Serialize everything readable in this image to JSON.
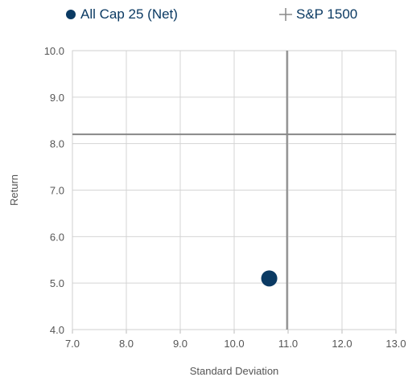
{
  "chart_data": {
    "type": "scatter",
    "xlabel": "Standard Deviation",
    "ylabel": "Return",
    "xlim": [
      7.0,
      13.0
    ],
    "ylim": [
      4.0,
      10.0
    ],
    "x_ticks": [
      "7.0",
      "8.0",
      "9.0",
      "10.0",
      "11.0",
      "12.0",
      "13.0"
    ],
    "y_ticks": [
      "4.0",
      "5.0",
      "6.0",
      "7.0",
      "8.0",
      "9.0",
      "10.0"
    ],
    "grid": true,
    "legend_position": "top",
    "series": [
      {
        "name": "All Cap 25 (Net)",
        "marker": "circle",
        "color": "#0b3a63",
        "x": [
          10.65
        ],
        "y": [
          5.1
        ]
      },
      {
        "name": "S&P 1500",
        "marker": "cross",
        "color": "#888888",
        "x": [
          10.98
        ],
        "y": [
          8.2
        ]
      }
    ]
  }
}
